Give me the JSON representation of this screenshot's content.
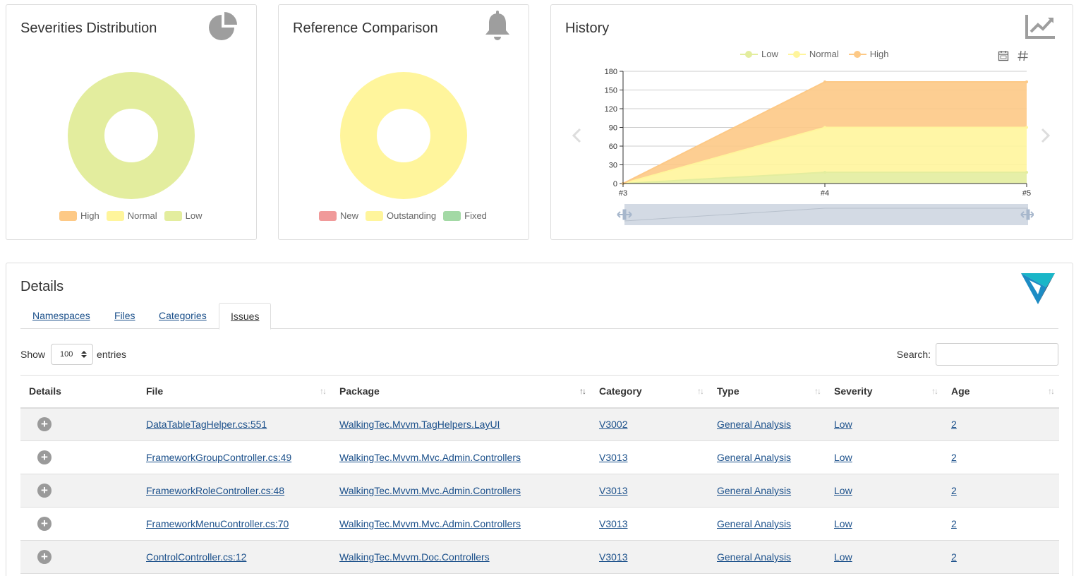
{
  "severities": {
    "title": "Severities Distribution",
    "icon": "pie-chart-icon",
    "legend": [
      {
        "label": "High",
        "color": "#fdc986"
      },
      {
        "label": "Normal",
        "color": "#fff59c"
      },
      {
        "label": "Low",
        "color": "#e3ed9e"
      }
    ]
  },
  "reference": {
    "title": "Reference Comparison",
    "icon": "bell-icon",
    "legend": [
      {
        "label": "New",
        "color": "#f09a9a"
      },
      {
        "label": "Outstanding",
        "color": "#fff59c"
      },
      {
        "label": "Fixed",
        "color": "#a3d9a5"
      }
    ]
  },
  "history": {
    "title": "History",
    "icon": "trend-chart-icon"
  },
  "chart_data": [
    {
      "type": "pie",
      "title": "Severities Distribution",
      "categories": [
        "High",
        "Normal",
        "Low"
      ],
      "values": [
        0,
        0,
        1
      ],
      "colors": [
        "#fdc986",
        "#fff59c",
        "#e3ed9e"
      ],
      "legend": "bottom"
    },
    {
      "type": "pie",
      "title": "Reference Comparison",
      "categories": [
        "New",
        "Outstanding",
        "Fixed"
      ],
      "values": [
        0,
        1,
        0
      ],
      "colors": [
        "#f09a9a",
        "#fff59c",
        "#a3d9a5"
      ],
      "legend": "bottom"
    },
    {
      "type": "area",
      "title": "History",
      "x": [
        "#3",
        "#4",
        "#5"
      ],
      "series": [
        {
          "name": "Low",
          "values": [
            0,
            18,
            18
          ],
          "color": "#e3ed9e"
        },
        {
          "name": "Normal",
          "values": [
            0,
            72,
            72
          ],
          "color": "#fff59c"
        },
        {
          "name": "High",
          "values": [
            0,
            73,
            73
          ],
          "color": "#fdc986"
        }
      ],
      "stacked": true,
      "ylim": [
        0,
        180
      ],
      "yticks": [
        0,
        30,
        60,
        90,
        120,
        150,
        180
      ],
      "grid": true,
      "legend": "top"
    }
  ],
  "details": {
    "title": "Details",
    "tabs": [
      "Namespaces",
      "Files",
      "Categories",
      "Issues"
    ],
    "active_tab": "Issues",
    "show_label": "Show",
    "page_size": "100",
    "entries_label": "entries",
    "search_label": "Search:",
    "columns": [
      "Details",
      "File",
      "Package",
      "Category",
      "Type",
      "Severity",
      "Age"
    ],
    "rows": [
      {
        "file": "DataTableTagHelper.cs:551",
        "package": "WalkingTec.Mvvm.TagHelpers.LayUI",
        "category": "V3002",
        "type": "General Analysis",
        "severity": "Low",
        "age": "2"
      },
      {
        "file": "FrameworkGroupController.cs:49",
        "package": "WalkingTec.Mvvm.Mvc.Admin.Controllers",
        "category": "V3013",
        "type": "General Analysis",
        "severity": "Low",
        "age": "2"
      },
      {
        "file": "FrameworkRoleController.cs:48",
        "package": "WalkingTec.Mvvm.Mvc.Admin.Controllers",
        "category": "V3013",
        "type": "General Analysis",
        "severity": "Low",
        "age": "2"
      },
      {
        "file": "FrameworkMenuController.cs:70",
        "package": "WalkingTec.Mvvm.Mvc.Admin.Controllers",
        "category": "V3013",
        "type": "General Analysis",
        "severity": "Low",
        "age": "2"
      },
      {
        "file": "ControlController.cs:12",
        "package": "WalkingTec.Mvvm.Doc.Controllers",
        "category": "V3013",
        "type": "General Analysis",
        "severity": "Low",
        "age": "2"
      }
    ]
  }
}
